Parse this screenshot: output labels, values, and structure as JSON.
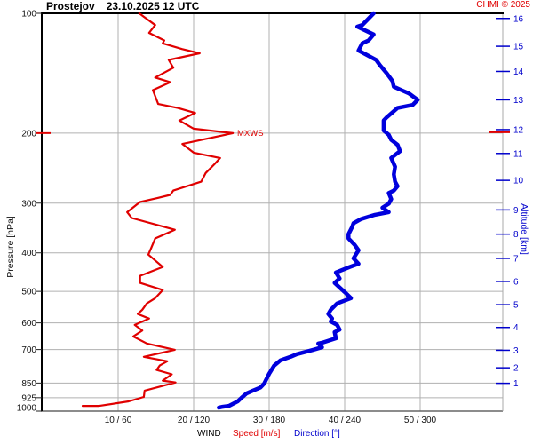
{
  "header": {
    "station": "Prostejov",
    "datetime": "23.10.2025 12 UTC",
    "copyright": "CHMI © 2025"
  },
  "axis_labels": {
    "pressure": "Pressure [hPa]",
    "altitude": "Altitude [km]",
    "wind": "WIND",
    "speed": "Speed [m/s]",
    "direction": "Direction [°]"
  },
  "annotations": {
    "mxws_label": "MXWS"
  },
  "colors": {
    "speed_curve": "#e00000",
    "direction_curve": "#0000dd",
    "blue_text": "#0000cc",
    "red_text": "#e00000",
    "grid": "#b0b0b0",
    "tick_text": "#111111"
  },
  "chart_data": {
    "type": "line",
    "title": "Prostejov 23.10.2025 12 UTC — vertical wind profile",
    "grid": true,
    "x_axis": {
      "dual": true,
      "speed_label": "Speed [m/s]",
      "speed_ticks": [
        10,
        20,
        30,
        40,
        50
      ],
      "speed_range": [
        0,
        61
      ],
      "direction_label": "Direction [°]",
      "direction_ticks": [
        60,
        120,
        180,
        240,
        300
      ],
      "direction_range": [
        0,
        366
      ],
      "tick_labels": [
        "10 / 60",
        "20 / 120",
        "30 / 180",
        "40 / 240",
        "50 / 300"
      ]
    },
    "y_axis_left": {
      "label": "Pressure [hPa]",
      "scale": "log",
      "range": [
        100,
        1000
      ],
      "ticks": [
        100,
        200,
        300,
        400,
        500,
        600,
        700,
        850,
        925,
        1000
      ]
    },
    "y_axis_right": {
      "label": "Altitude [km]",
      "ticks": [
        {
          "km": 16,
          "hPa": 103
        },
        {
          "km": 15,
          "hPa": 121
        },
        {
          "km": 14,
          "hPa": 140
        },
        {
          "km": 13,
          "hPa": 165
        },
        {
          "km": 12,
          "hPa": 196
        },
        {
          "km": 11,
          "hPa": 225
        },
        {
          "km": 10,
          "hPa": 263
        },
        {
          "km": 9,
          "hPa": 312
        },
        {
          "km": 8,
          "hPa": 359
        },
        {
          "km": 7,
          "hPa": 413
        },
        {
          "km": 6,
          "hPa": 472
        },
        {
          "km": 5,
          "hPa": 540
        },
        {
          "km": 4,
          "hPa": 616
        },
        {
          "km": 3,
          "hPa": 703
        },
        {
          "km": 2,
          "hPa": 778
        },
        {
          "km": 1,
          "hPa": 851
        }
      ]
    },
    "annotations": [
      {
        "label": "MXWS",
        "hPa": 200,
        "speed": 25.2,
        "color": "#e00000"
      }
    ],
    "series": [
      {
        "name": "Speed [m/s]",
        "axis": "speed",
        "color": "#e00000",
        "width": 2.2,
        "points": [
          [
            100,
            12.8
          ],
          [
            102,
            13.4
          ],
          [
            107,
            14.9
          ],
          [
            112,
            14.1
          ],
          [
            117,
            16.1
          ],
          [
            119,
            15.9
          ],
          [
            123,
            18.5
          ],
          [
            126,
            20.8
          ],
          [
            131,
            16.7
          ],
          [
            137,
            17.3
          ],
          [
            145,
            14.9
          ],
          [
            149,
            16.9
          ],
          [
            156,
            14.6
          ],
          [
            169,
            15.3
          ],
          [
            173,
            17.9
          ],
          [
            178,
            20.2
          ],
          [
            186,
            18.1
          ],
          [
            195,
            20.0
          ],
          [
            200,
            25.2
          ],
          [
            213,
            18.5
          ],
          [
            224,
            20.0
          ],
          [
            231,
            23.5
          ],
          [
            239,
            22.8
          ],
          [
            252,
            21.6
          ],
          [
            265,
            21.0
          ],
          [
            279,
            17.3
          ],
          [
            286,
            16.9
          ],
          [
            291,
            15.3
          ],
          [
            298,
            12.9
          ],
          [
            316,
            11.2
          ],
          [
            327,
            11.8
          ],
          [
            350,
            17.5
          ],
          [
            368,
            14.9
          ],
          [
            388,
            14.4
          ],
          [
            404,
            14.0
          ],
          [
            434,
            15.9
          ],
          [
            457,
            12.9
          ],
          [
            476,
            12.9
          ],
          [
            496,
            15.9
          ],
          [
            520,
            14.9
          ],
          [
            536,
            13.8
          ],
          [
            556,
            13.2
          ],
          [
            570,
            12.6
          ],
          [
            585,
            14.1
          ],
          [
            607,
            12.2
          ],
          [
            627,
            13.2
          ],
          [
            649,
            12.0
          ],
          [
            676,
            13.8
          ],
          [
            701,
            17.5
          ],
          [
            730,
            13.4
          ],
          [
            749,
            16.5
          ],
          [
            768,
            15.5
          ],
          [
            788,
            15.1
          ],
          [
            808,
            17.1
          ],
          [
            838,
            15.9
          ],
          [
            847,
            17.6
          ],
          [
            888,
            13.5
          ],
          [
            921,
            13.4
          ],
          [
            945,
            11.4
          ],
          [
            970,
            7.5
          ],
          [
            970,
            5.3
          ]
        ]
      },
      {
        "name": "Direction [°]",
        "axis": "direction",
        "color": "#0000dd",
        "width": 4.5,
        "points": [
          [
            100,
            263
          ],
          [
            107,
            254
          ],
          [
            108,
            250
          ],
          [
            113,
            263
          ],
          [
            117,
            259
          ],
          [
            119,
            254
          ],
          [
            124,
            251
          ],
          [
            131,
            265
          ],
          [
            135,
            268
          ],
          [
            141,
            273
          ],
          [
            148,
            278
          ],
          [
            153,
            279
          ],
          [
            156,
            285
          ],
          [
            159,
            291
          ],
          [
            165,
            298
          ],
          [
            170,
            294
          ],
          [
            173,
            282
          ],
          [
            183,
            273
          ],
          [
            186,
            271
          ],
          [
            197,
            271
          ],
          [
            202,
            275
          ],
          [
            208,
            277
          ],
          [
            214,
            282
          ],
          [
            222,
            284
          ],
          [
            227,
            280
          ],
          [
            231,
            277
          ],
          [
            243,
            280
          ],
          [
            254,
            279
          ],
          [
            265,
            280
          ],
          [
            272,
            282
          ],
          [
            279,
            279
          ],
          [
            283,
            275
          ],
          [
            293,
            277
          ],
          [
            301,
            275
          ],
          [
            308,
            270
          ],
          [
            313,
            273
          ],
          [
            316,
            275
          ],
          [
            321,
            264
          ],
          [
            329,
            253
          ],
          [
            337,
            247
          ],
          [
            344,
            246
          ],
          [
            359,
            243
          ],
          [
            368,
            243
          ],
          [
            382,
            248
          ],
          [
            394,
            251
          ],
          [
            413,
            247
          ],
          [
            426,
            251
          ],
          [
            434,
            244
          ],
          [
            448,
            233
          ],
          [
            464,
            236
          ],
          [
            476,
            232
          ],
          [
            502,
            240
          ],
          [
            520,
            245
          ],
          [
            536,
            234
          ],
          [
            556,
            229
          ],
          [
            570,
            227
          ],
          [
            585,
            230
          ],
          [
            595,
            229
          ],
          [
            607,
            234
          ],
          [
            624,
            236
          ],
          [
            633,
            232
          ],
          [
            656,
            233
          ],
          [
            673,
            222
          ],
          [
            676,
            219
          ],
          [
            691,
            222
          ],
          [
            701,
            215
          ],
          [
            719,
            202
          ],
          [
            730,
            197
          ],
          [
            745,
            189
          ],
          [
            768,
            184
          ],
          [
            796,
            181
          ],
          [
            805,
            180
          ],
          [
            853,
            176
          ],
          [
            872,
            173
          ],
          [
            888,
            167
          ],
          [
            903,
            162
          ],
          [
            926,
            158
          ],
          [
            945,
            155
          ],
          [
            970,
            148
          ],
          [
            975,
            143
          ],
          [
            980,
            140
          ]
        ]
      }
    ]
  }
}
